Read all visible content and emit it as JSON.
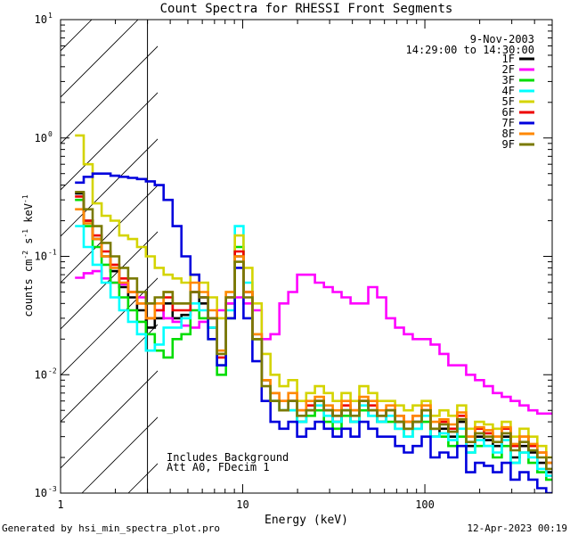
{
  "chart_data": {
    "type": "line",
    "step": true,
    "title": "Count Spectra for RHESSI Front Segments",
    "xlabel": "Energy (keV)",
    "ylabel_base": "counts cm",
    "ylabel_e1": "-2",
    "ylabel_mid": " s",
    "ylabel_e2": "-1",
    "ylabel_unit": " keV",
    "ylabel_e3": "-1",
    "xscale": "log",
    "yscale": "log",
    "xlim": [
      1,
      500
    ],
    "ylim": [
      0.001,
      10
    ],
    "x_ticks": [
      "1",
      "10",
      "100"
    ],
    "y_ticks": [
      {
        "base": "10",
        "exp": "-3"
      },
      {
        "base": "10",
        "exp": "-2"
      },
      {
        "base": "10",
        "exp": "-1"
      },
      {
        "base": "10",
        "exp": "0"
      },
      {
        "base": "10",
        "exp": "1"
      }
    ],
    "shaded_region": {
      "from": 1,
      "to": 3,
      "pattern": "diagonal-hatch"
    },
    "date": "9-Nov-2003",
    "time_range": "14:29:00 to 14:30:00",
    "note_line1": "Includes Background",
    "note_line2": "Att A0, FDecim 1",
    "legend_position": "top-right",
    "x_edges": [
      1.2,
      1.34,
      1.5,
      1.68,
      1.88,
      2.1,
      2.35,
      2.63,
      2.94,
      3.29,
      3.68,
      4.12,
      4.61,
      5.16,
      5.77,
      6.46,
      7.23,
      8.09,
      9.05,
      10.1,
      11.3,
      12.7,
      14.2,
      15.9,
      17.8,
      19.9,
      22.3,
      24.9,
      27.9,
      31.2,
      34.9,
      39.1,
      43.7,
      48.9,
      54.7,
      61.3,
      68.6,
      76.7,
      85.8,
      96.1,
      107.5,
      120.3,
      134.6,
      150.6,
      168.6,
      188.6,
      211.1,
      236.2,
      264.3,
      295.8,
      331,
      370.4,
      414.5,
      463.9,
      500
    ],
    "series": [
      {
        "name": "1F",
        "color": "#000000",
        "values": [
          0.34,
          0.2,
          0.14,
          0.1,
          0.075,
          0.055,
          0.045,
          0.035,
          0.025,
          0.03,
          0.04,
          0.03,
          0.032,
          0.05,
          0.04,
          0.025,
          0.012,
          0.04,
          0.1,
          0.05,
          0.02,
          0.009,
          0.006,
          0.005,
          0.006,
          0.004,
          0.005,
          0.006,
          0.005,
          0.004,
          0.005,
          0.004,
          0.006,
          0.005,
          0.004,
          0.005,
          0.004,
          0.0035,
          0.004,
          0.005,
          0.003,
          0.0035,
          0.003,
          0.004,
          0.0025,
          0.003,
          0.0028,
          0.0025,
          0.003,
          0.002,
          0.0025,
          0.0022,
          0.0018,
          0.0015
        ]
      },
      {
        "name": "2F",
        "color": "#ff00ff",
        "values": [
          0.066,
          0.072,
          0.075,
          0.065,
          0.06,
          0.058,
          0.05,
          0.045,
          0.04,
          0.035,
          0.03,
          0.028,
          0.026,
          0.025,
          0.028,
          0.03,
          0.035,
          0.04,
          0.045,
          0.04,
          0.035,
          0.02,
          0.022,
          0.04,
          0.05,
          0.07,
          0.07,
          0.06,
          0.055,
          0.05,
          0.045,
          0.04,
          0.04,
          0.055,
          0.045,
          0.03,
          0.025,
          0.022,
          0.02,
          0.02,
          0.018,
          0.015,
          0.012,
          0.012,
          0.01,
          0.009,
          0.008,
          0.007,
          0.0065,
          0.006,
          0.0055,
          0.005,
          0.0047,
          0.0047
        ]
      },
      {
        "name": "3F",
        "color": "#00dd00",
        "values": [
          0.3,
          0.18,
          0.12,
          0.085,
          0.06,
          0.045,
          0.035,
          0.028,
          0.022,
          0.016,
          0.014,
          0.02,
          0.022,
          0.035,
          0.03,
          0.02,
          0.01,
          0.03,
          0.12,
          0.05,
          0.02,
          0.009,
          0.006,
          0.005,
          0.005,
          0.004,
          0.0045,
          0.005,
          0.004,
          0.0035,
          0.0045,
          0.004,
          0.005,
          0.0045,
          0.004,
          0.004,
          0.0035,
          0.003,
          0.0035,
          0.004,
          0.003,
          0.003,
          0.0025,
          0.003,
          0.0022,
          0.0025,
          0.0025,
          0.002,
          0.0025,
          0.0018,
          0.0022,
          0.0018,
          0.0015,
          0.0013
        ]
      },
      {
        "name": "4F",
        "color": "#00ffff",
        "values": [
          0.18,
          0.12,
          0.085,
          0.06,
          0.045,
          0.035,
          0.028,
          0.022,
          0.016,
          0.018,
          0.025,
          0.025,
          0.03,
          0.04,
          0.035,
          0.025,
          0.012,
          0.035,
          0.18,
          0.06,
          0.022,
          0.009,
          0.006,
          0.005,
          0.005,
          0.004,
          0.005,
          0.0055,
          0.0045,
          0.004,
          0.005,
          0.004,
          0.0055,
          0.0045,
          0.004,
          0.0045,
          0.0035,
          0.003,
          0.0035,
          0.0045,
          0.003,
          0.0032,
          0.0028,
          0.0035,
          0.0022,
          0.0028,
          0.0025,
          0.0022,
          0.0028,
          0.0018,
          0.0022,
          0.002,
          0.0016,
          0.0014
        ]
      },
      {
        "name": "5F",
        "color": "#d4d400",
        "values": [
          1.05,
          0.6,
          0.28,
          0.22,
          0.2,
          0.15,
          0.14,
          0.12,
          0.1,
          0.08,
          0.07,
          0.065,
          0.06,
          0.07,
          0.06,
          0.045,
          0.03,
          0.05,
          0.15,
          0.08,
          0.04,
          0.015,
          0.01,
          0.008,
          0.009,
          0.006,
          0.007,
          0.008,
          0.007,
          0.006,
          0.007,
          0.006,
          0.008,
          0.007,
          0.006,
          0.006,
          0.0055,
          0.005,
          0.0055,
          0.006,
          0.0045,
          0.005,
          0.0045,
          0.0055,
          0.0035,
          0.004,
          0.0038,
          0.0035,
          0.004,
          0.003,
          0.0035,
          0.003,
          0.0025,
          0.002
        ]
      },
      {
        "name": "6F",
        "color": "#ee0000",
        "values": [
          0.32,
          0.2,
          0.15,
          0.11,
          0.085,
          0.065,
          0.05,
          0.04,
          0.03,
          0.035,
          0.045,
          0.035,
          0.035,
          0.05,
          0.045,
          0.03,
          0.014,
          0.045,
          0.11,
          0.05,
          0.022,
          0.009,
          0.007,
          0.006,
          0.006,
          0.005,
          0.0055,
          0.006,
          0.005,
          0.0045,
          0.0055,
          0.005,
          0.006,
          0.0055,
          0.0045,
          0.005,
          0.0045,
          0.004,
          0.0045,
          0.005,
          0.0035,
          0.004,
          0.0035,
          0.0045,
          0.003,
          0.0035,
          0.0032,
          0.003,
          0.0035,
          0.0025,
          0.003,
          0.0025,
          0.0022,
          0.0018
        ]
      },
      {
        "name": "7F",
        "color": "#0000dd",
        "values": [
          0.42,
          0.47,
          0.5,
          0.5,
          0.48,
          0.47,
          0.46,
          0.45,
          0.43,
          0.4,
          0.3,
          0.18,
          0.1,
          0.07,
          0.045,
          0.02,
          0.012,
          0.03,
          0.08,
          0.03,
          0.013,
          0.006,
          0.004,
          0.0035,
          0.004,
          0.003,
          0.0035,
          0.004,
          0.0035,
          0.003,
          0.0035,
          0.003,
          0.004,
          0.0035,
          0.003,
          0.003,
          0.0025,
          0.0022,
          0.0025,
          0.003,
          0.002,
          0.0022,
          0.002,
          0.0025,
          0.0015,
          0.0018,
          0.0017,
          0.0015,
          0.0018,
          0.0013,
          0.0015,
          0.0013,
          0.0011,
          0.001
        ]
      },
      {
        "name": "8F",
        "color": "#ff8800",
        "values": [
          0.25,
          0.19,
          0.14,
          0.1,
          0.08,
          0.06,
          0.05,
          0.04,
          0.03,
          0.04,
          0.05,
          0.04,
          0.04,
          0.06,
          0.05,
          0.035,
          0.016,
          0.05,
          0.1,
          0.05,
          0.022,
          0.009,
          0.007,
          0.006,
          0.007,
          0.005,
          0.006,
          0.0065,
          0.0055,
          0.005,
          0.006,
          0.005,
          0.0065,
          0.006,
          0.005,
          0.0055,
          0.0045,
          0.004,
          0.0045,
          0.0055,
          0.004,
          0.0042,
          0.0038,
          0.0048,
          0.003,
          0.0036,
          0.0034,
          0.003,
          0.0036,
          0.0026,
          0.003,
          0.0026,
          0.0022,
          0.0018
        ]
      },
      {
        "name": "9F",
        "color": "#7a7a00",
        "values": [
          0.35,
          0.25,
          0.18,
          0.13,
          0.1,
          0.08,
          0.065,
          0.05,
          0.04,
          0.045,
          0.05,
          0.04,
          0.04,
          0.05,
          0.045,
          0.03,
          0.015,
          0.045,
          0.09,
          0.045,
          0.02,
          0.008,
          0.006,
          0.005,
          0.006,
          0.0045,
          0.005,
          0.006,
          0.005,
          0.0045,
          0.005,
          0.0045,
          0.006,
          0.005,
          0.0045,
          0.005,
          0.004,
          0.0035,
          0.004,
          0.005,
          0.0035,
          0.0038,
          0.0033,
          0.0042,
          0.0027,
          0.0032,
          0.003,
          0.0027,
          0.0032,
          0.0023,
          0.0027,
          0.0023,
          0.002,
          0.0016
        ]
      }
    ]
  },
  "footer": {
    "generated_by": "Generated by hsi_min_spectra_plot.pro",
    "timestamp": "12-Apr-2023 00:19"
  }
}
